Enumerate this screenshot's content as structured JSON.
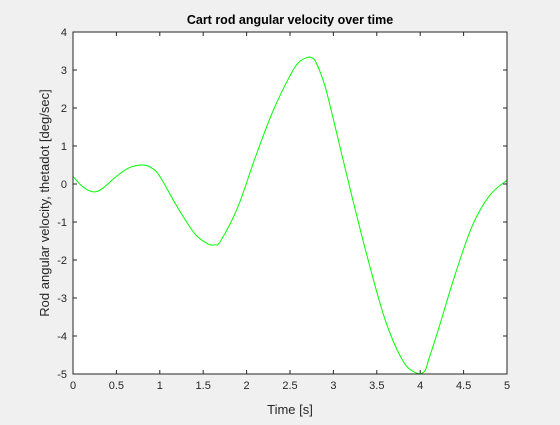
{
  "chart_data": {
    "type": "line",
    "title": "Cart rod angular velocity over time",
    "xlabel": "Time [s]",
    "ylabel": "Rod angular velocity, thetadot [deg/sec]",
    "xlim": [
      0,
      5
    ],
    "ylim": [
      -5,
      4
    ],
    "xticks": [
      "0",
      "0.5",
      "1",
      "1.5",
      "2",
      "2.5",
      "3",
      "3.5",
      "4",
      "4.5",
      "5"
    ],
    "yticks": [
      "-5",
      "-4",
      "-3",
      "-2",
      "-1",
      "0",
      "1",
      "2",
      "3",
      "4"
    ],
    "grid": false,
    "series": [
      {
        "color": "#00ff00",
        "x": [
          0,
          0.1,
          0.2,
          0.27,
          0.35,
          0.5,
          0.65,
          0.8,
          0.9,
          1.0,
          1.2,
          1.4,
          1.55,
          1.63,
          1.7,
          1.9,
          2.1,
          2.3,
          2.5,
          2.6,
          2.7,
          2.75,
          2.8,
          2.9,
          3.0,
          3.2,
          3.4,
          3.6,
          3.8,
          3.95,
          4.05,
          4.1,
          4.2,
          4.4,
          4.6,
          4.8,
          5.0
        ],
        "y": [
          0.2,
          -0.05,
          -0.19,
          -0.2,
          -0.1,
          0.2,
          0.43,
          0.5,
          0.43,
          0.2,
          -0.6,
          -1.3,
          -1.57,
          -1.6,
          -1.5,
          -0.6,
          0.7,
          1.9,
          2.85,
          3.2,
          3.33,
          3.32,
          3.2,
          2.6,
          1.7,
          -0.2,
          -2.0,
          -3.6,
          -4.65,
          -4.97,
          -4.93,
          -4.6,
          -3.9,
          -2.4,
          -1.1,
          -0.3,
          0.1
        ]
      }
    ]
  }
}
